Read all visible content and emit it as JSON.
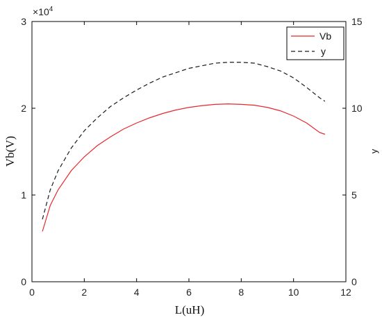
{
  "chart_data": {
    "type": "line",
    "xlabel": "L(uH)",
    "ylabel": "Vb(V)",
    "y2label": "y",
    "xlim": [
      0,
      12
    ],
    "ylim": [
      0,
      3
    ],
    "y2lim": [
      0,
      15
    ],
    "y_multiplier_text": "×10",
    "y_multiplier_exp": "4",
    "x_ticks": [
      "0",
      "2",
      "4",
      "6",
      "8",
      "10",
      "12"
    ],
    "y_ticks": [
      "0",
      "1",
      "2",
      "3"
    ],
    "y2_ticks": [
      "0",
      "5",
      "10",
      "15"
    ],
    "legend": {
      "position": "top-right",
      "entries": [
        "Vb",
        "y"
      ]
    },
    "grid": false,
    "series": [
      {
        "name": "Vb",
        "axis": "left",
        "color": "#e8262b",
        "style": "solid",
        "x": [
          0.4,
          0.7,
          1.0,
          1.5,
          2.0,
          2.5,
          3.0,
          3.5,
          4.0,
          4.5,
          5.0,
          5.5,
          6.0,
          6.5,
          7.0,
          7.5,
          8.0,
          8.5,
          9.0,
          9.5,
          10.0,
          10.5,
          11.0,
          11.2
        ],
        "values": [
          0.58,
          0.88,
          1.06,
          1.28,
          1.44,
          1.57,
          1.67,
          1.76,
          1.83,
          1.89,
          1.94,
          1.98,
          2.01,
          2.03,
          2.045,
          2.05,
          2.045,
          2.035,
          2.01,
          1.97,
          1.91,
          1.83,
          1.72,
          1.7
        ]
      },
      {
        "name": "y",
        "axis": "right",
        "color": "#1a1a1a",
        "style": "dashed",
        "x": [
          0.4,
          0.7,
          1.0,
          1.5,
          2.0,
          2.5,
          3.0,
          3.5,
          4.0,
          4.5,
          5.0,
          5.5,
          6.0,
          6.5,
          7.0,
          7.5,
          8.0,
          8.5,
          9.0,
          9.5,
          10.0,
          10.5,
          11.0,
          11.2
        ],
        "values": [
          3.6,
          5.3,
          6.4,
          7.7,
          8.7,
          9.45,
          10.1,
          10.6,
          11.05,
          11.45,
          11.8,
          12.05,
          12.3,
          12.45,
          12.6,
          12.65,
          12.65,
          12.6,
          12.4,
          12.15,
          11.75,
          11.2,
          10.6,
          10.4
        ]
      }
    ]
  }
}
